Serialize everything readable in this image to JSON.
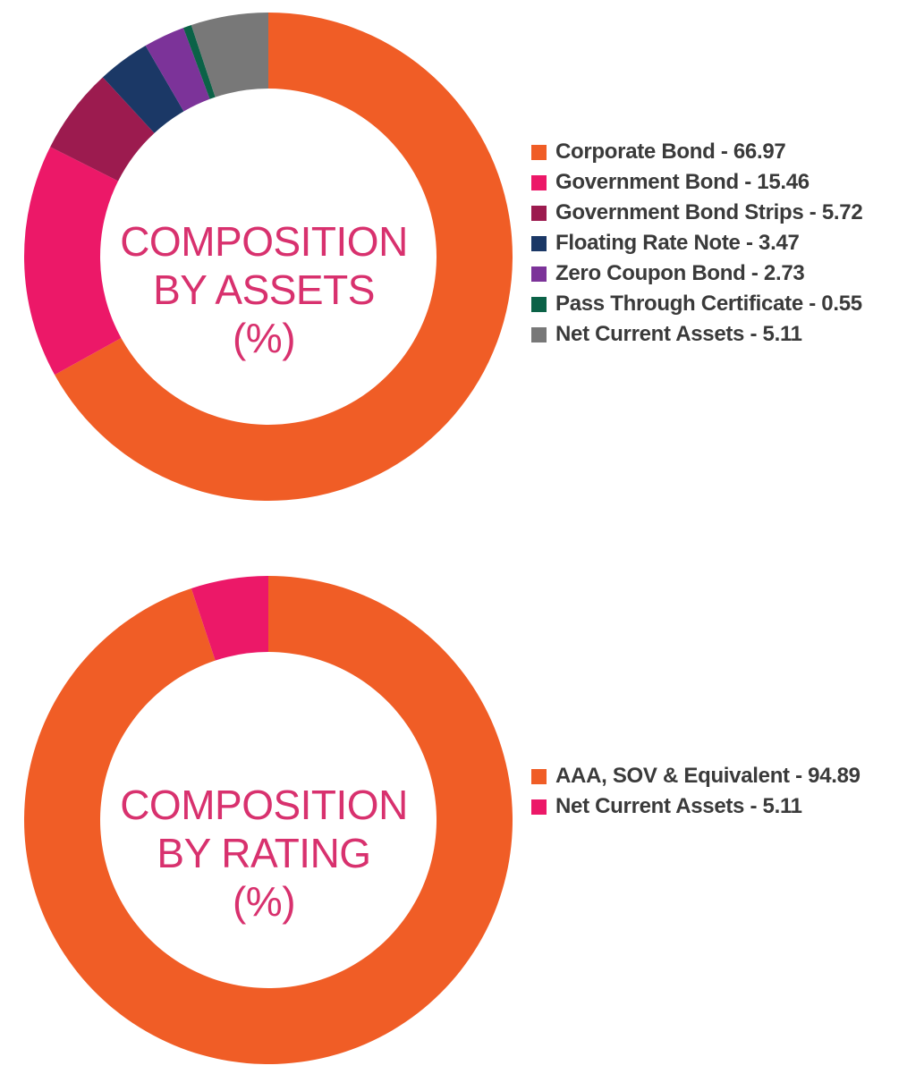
{
  "chart_data": [
    {
      "type": "pie",
      "title": [
        "COMPOSITION",
        "BY ASSETS",
        "(%)"
      ],
      "slices": [
        {
          "label": "Corporate Bond - 66.97",
          "value": 66.97,
          "color": "#f05d26"
        },
        {
          "label": "Government Bond - 15.46",
          "value": 15.46,
          "color": "#ec1868"
        },
        {
          "label": "Government Bond Strips - 5.72",
          "value": 5.72,
          "color": "#9c1b4f"
        },
        {
          "label": "Floating Rate Note - 3.47",
          "value": 3.47,
          "color": "#1b3866"
        },
        {
          "label": "Zero Coupon Bond - 2.73",
          "value": 2.73,
          "color": "#7c3399"
        },
        {
          "label": "Pass Through Certificate - 0.55",
          "value": 0.55,
          "color": "#0b6247"
        },
        {
          "label": "Net Current Assets - 5.11",
          "value": 5.11,
          "color": "#787878"
        }
      ],
      "legend_position": "right"
    },
    {
      "type": "pie",
      "title": [
        "COMPOSITION",
        "BY RATING",
        "(%)"
      ],
      "slices": [
        {
          "label": "AAA, SOV & Equivalent - 94.89",
          "value": 94.89,
          "color": "#f05d26"
        },
        {
          "label": "Net Current Assets - 5.11",
          "value": 5.11,
          "color": "#ec1868"
        }
      ],
      "legend_position": "right"
    }
  ]
}
